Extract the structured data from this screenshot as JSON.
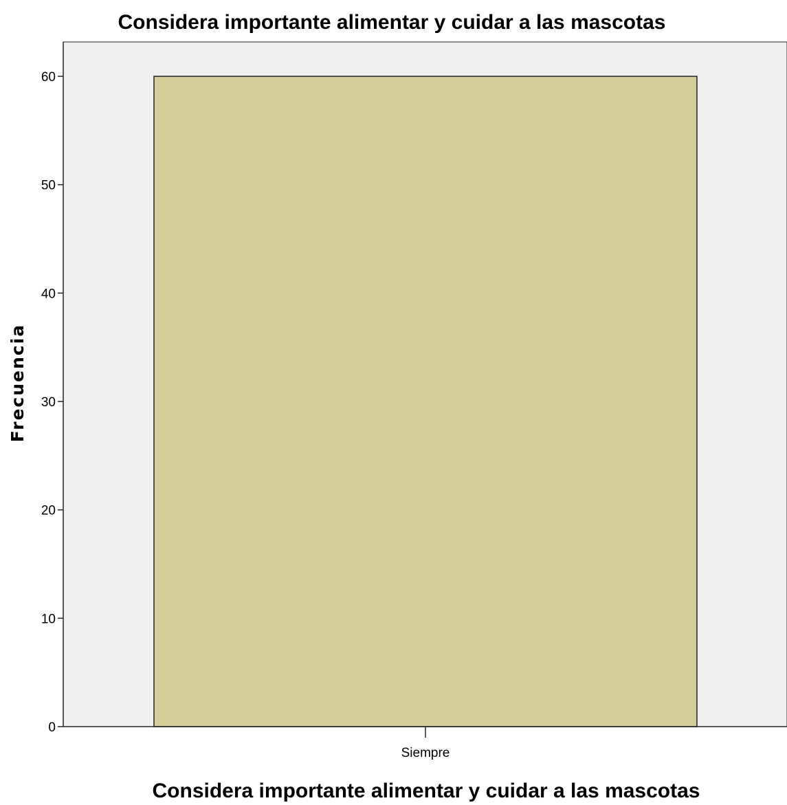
{
  "chart_data": {
    "type": "bar",
    "title": "Considera importante alimentar y cuidar a las mascotas",
    "xlabel": "Considera importante alimentar y cuidar a las mascotas",
    "ylabel": "Frecuencia",
    "categories": [
      "Siempre"
    ],
    "values": [
      60
    ],
    "ylim": [
      0,
      63
    ],
    "yticks": [
      0,
      10,
      20,
      30,
      40,
      50,
      60
    ],
    "grid": false,
    "legend": "none",
    "colors": {
      "bar_fill": "#d4ce98",
      "bar_stroke": "#222222",
      "plot_background": "#f0f0f0",
      "axis": "#222222"
    }
  }
}
